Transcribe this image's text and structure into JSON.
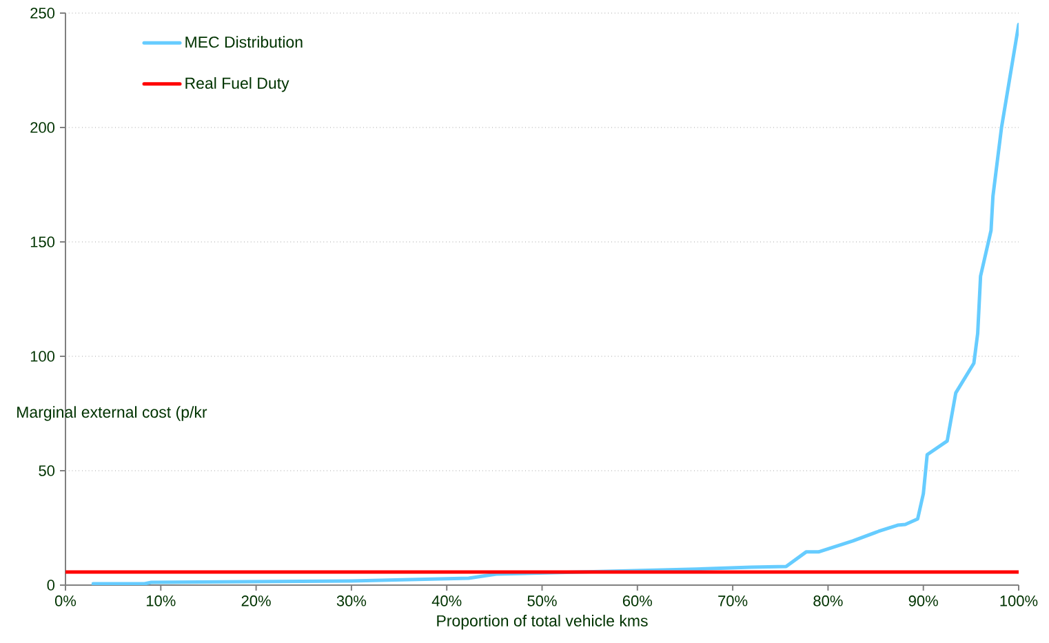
{
  "chart_data": {
    "type": "line",
    "xlabel": "Proportion of total vehicle kms",
    "ylabel": "Marginal external cost (p/kr",
    "xlim": [
      0,
      100
    ],
    "ylim": [
      0,
      250
    ],
    "xticks": [
      {
        "value": 0,
        "label": "0%"
      },
      {
        "value": 10,
        "label": "10%"
      },
      {
        "value": 20,
        "label": "20%"
      },
      {
        "value": 30,
        "label": "30%"
      },
      {
        "value": 40,
        "label": "40%"
      },
      {
        "value": 50,
        "label": "50%"
      },
      {
        "value": 60,
        "label": "60%"
      },
      {
        "value": 70,
        "label": "70%"
      },
      {
        "value": 80,
        "label": "80%"
      },
      {
        "value": 90,
        "label": "90%"
      },
      {
        "value": 100,
        "label": "100%"
      }
    ],
    "yticks": [
      0,
      50,
      100,
      150,
      200,
      250
    ],
    "grid": "y",
    "legend": "top left",
    "series": [
      {
        "name": "MEC Distribution",
        "color": "#66ccff",
        "x": [
          2.9,
          8.3,
          9.0,
          30,
          42.3,
          45.2,
          54.6,
          66.2,
          71.9,
          75.6,
          77.7,
          79,
          82.6,
          85.3,
          87.3,
          88.1,
          89.4,
          90,
          90.4,
          92.5,
          93.4,
          95.3,
          95.7,
          96.0,
          97.1,
          97.3,
          98.2,
          100
        ],
        "values": [
          0.6,
          0.6,
          1.2,
          1.8,
          3,
          4.8,
          null,
          7,
          7.8,
          8.1,
          14.5,
          14.5,
          19.3,
          23.5,
          26.2,
          26.5,
          28.9,
          40,
          57,
          63,
          84,
          97,
          110,
          135,
          155,
          170,
          200,
          245
        ]
      },
      {
        "name": "Real Fuel Duty",
        "color": "#ff0000",
        "x": [
          0,
          100
        ],
        "values": [
          5.7,
          5.7
        ]
      }
    ]
  }
}
